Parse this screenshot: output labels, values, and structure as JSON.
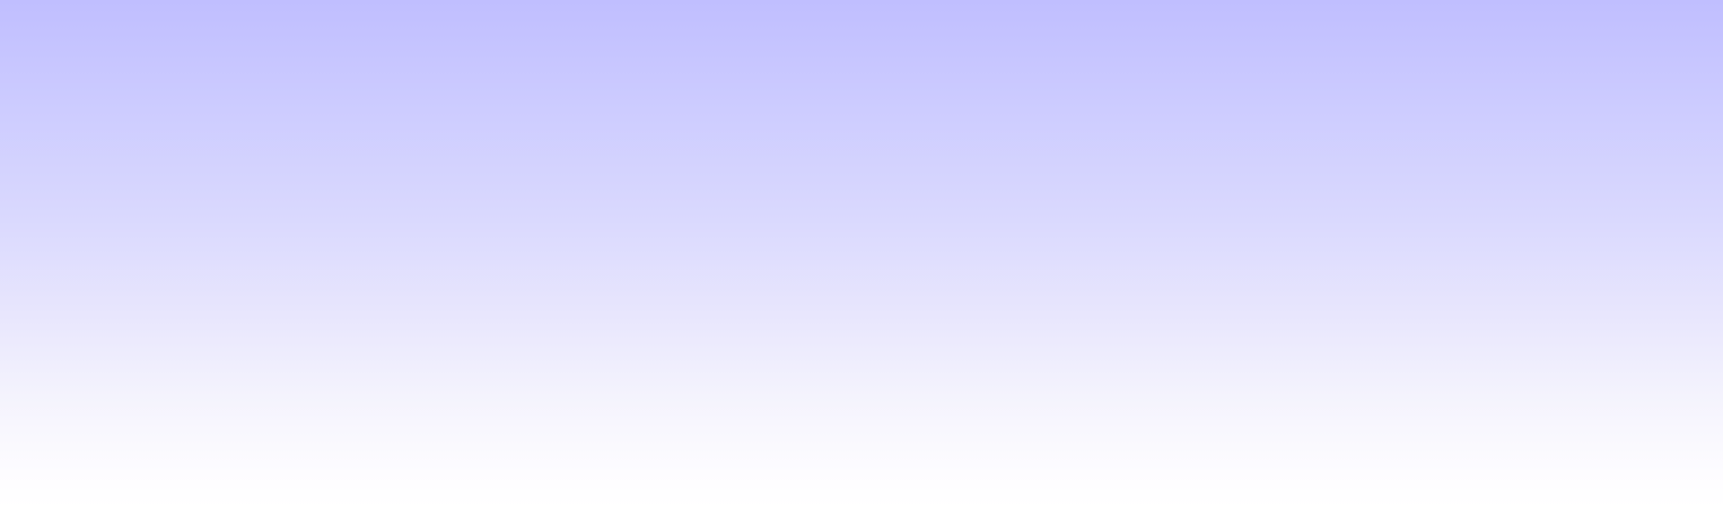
{
  "background": {
    "gradient_direction": "top-to-bottom",
    "color_top": "#c0beff",
    "color_bottom": "#ffffff"
  }
}
